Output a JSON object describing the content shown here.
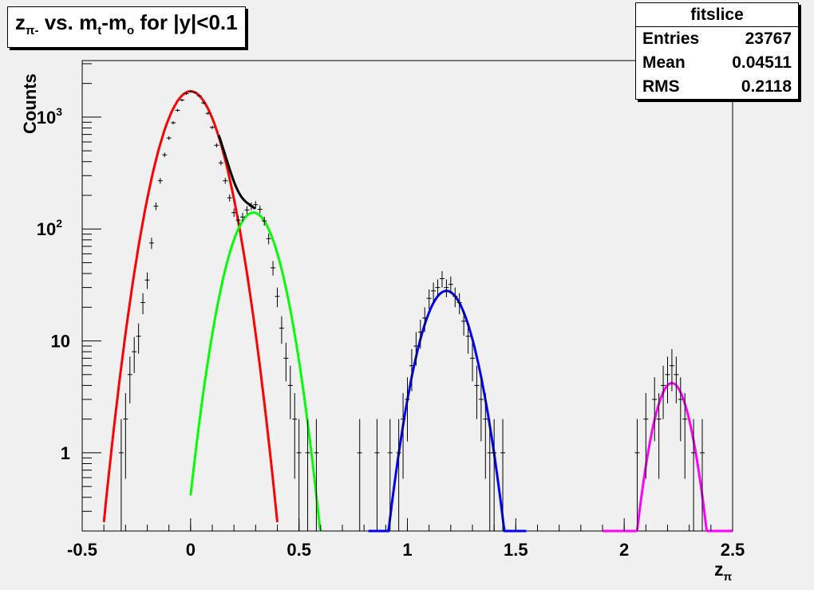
{
  "title": {
    "main": "z",
    "sub": "π-",
    "vs": " vs. m",
    "sub2": "t",
    "dash": "-m",
    "sub3": "o",
    "tail": " for |y|<0.1"
  },
  "stats": {
    "name": "fitslice",
    "rows": [
      {
        "label": "Entries",
        "value": "23767"
      },
      {
        "label": "Mean",
        "value": "0.04511"
      },
      {
        "label": "RMS",
        "value": "0.2118"
      }
    ]
  },
  "chart_data": {
    "type": "scatter",
    "xlabel": "z",
    "xlabel_sub": "π",
    "ylabel": "Counts",
    "xlim": [
      -0.5,
      2.5
    ],
    "ylim_log": [
      0.2,
      3200
    ],
    "log_y": true,
    "x_ticks": [
      {
        "v": -0.5,
        "label": "-0.5"
      },
      {
        "v": 0,
        "label": "0"
      },
      {
        "v": 0.5,
        "label": "0.5"
      },
      {
        "v": 1,
        "label": "1"
      },
      {
        "v": 1.5,
        "label": "1.5"
      },
      {
        "v": 2,
        "label": "2"
      },
      {
        "v": 2.5,
        "label": "2.5"
      }
    ],
    "y_ticks": [
      {
        "v": 1,
        "label": "1"
      },
      {
        "v": 10,
        "label": "10"
      },
      {
        "v": 100,
        "label": "10",
        "sup": "2"
      },
      {
        "v": 1000,
        "label": "10",
        "sup": "3"
      }
    ],
    "fits": [
      {
        "name": "red",
        "color": "#ff0000",
        "A": 1700,
        "mu": 0.0,
        "sigma": 0.095,
        "xmin": -0.4,
        "xmax": 0.4
      },
      {
        "name": "green",
        "color": "#00ff00",
        "A": 140,
        "mu": 0.29,
        "sigma": 0.085,
        "xmin": 0.0,
        "xmax": 0.6
      },
      {
        "name": "blue",
        "color": "#0000ff",
        "A": 28,
        "mu": 1.18,
        "sigma": 0.085,
        "xmin": 0.82,
        "xmax": 1.55
      },
      {
        "name": "magenta",
        "color": "#ff00ff",
        "A": 4.2,
        "mu": 2.22,
        "sigma": 0.065,
        "xmin": 1.9,
        "xmax": 2.5
      }
    ],
    "total": {
      "name": "sum",
      "color": "#000000",
      "xmin": 0.13,
      "xmax": 0.3
    },
    "points": [
      [
        -0.32,
        1
      ],
      [
        -0.3,
        2
      ],
      [
        -0.28,
        5
      ],
      [
        -0.26,
        8
      ],
      [
        -0.24,
        11
      ],
      [
        -0.22,
        22
      ],
      [
        -0.2,
        35
      ],
      [
        -0.18,
        75
      ],
      [
        -0.16,
        160
      ],
      [
        -0.14,
        270
      ],
      [
        -0.12,
        460
      ],
      [
        -0.1,
        650
      ],
      [
        -0.08,
        890
      ],
      [
        -0.06,
        1150
      ],
      [
        -0.04,
        1420
      ],
      [
        -0.02,
        1620
      ],
      [
        0.0,
        1700
      ],
      [
        0.02,
        1660
      ],
      [
        0.04,
        1550
      ],
      [
        0.06,
        1340
      ],
      [
        0.08,
        1080
      ],
      [
        0.1,
        810
      ],
      [
        0.12,
        560
      ],
      [
        0.14,
        390
      ],
      [
        0.16,
        270
      ],
      [
        0.18,
        190
      ],
      [
        0.2,
        140
      ],
      [
        0.22,
        120
      ],
      [
        0.24,
        128
      ],
      [
        0.26,
        148
      ],
      [
        0.28,
        160
      ],
      [
        0.3,
        165
      ],
      [
        0.32,
        150
      ],
      [
        0.34,
        118
      ],
      [
        0.36,
        82
      ],
      [
        0.38,
        45
      ],
      [
        0.4,
        25
      ],
      [
        0.42,
        13
      ],
      [
        0.44,
        7
      ],
      [
        0.46,
        4
      ],
      [
        0.48,
        2
      ],
      [
        0.5,
        1
      ],
      [
        0.54,
        1
      ],
      [
        0.58,
        1
      ],
      [
        0.78,
        1
      ],
      [
        0.86,
        1
      ],
      [
        0.92,
        1
      ],
      [
        0.96,
        1
      ],
      [
        0.98,
        2
      ],
      [
        1.0,
        3
      ],
      [
        1.02,
        6
      ],
      [
        1.04,
        9
      ],
      [
        1.06,
        12
      ],
      [
        1.08,
        16
      ],
      [
        1.1,
        24
      ],
      [
        1.12,
        28
      ],
      [
        1.14,
        30
      ],
      [
        1.16,
        36
      ],
      [
        1.18,
        30
      ],
      [
        1.2,
        32
      ],
      [
        1.22,
        25
      ],
      [
        1.24,
        22
      ],
      [
        1.26,
        15
      ],
      [
        1.28,
        11
      ],
      [
        1.3,
        7
      ],
      [
        1.32,
        4
      ],
      [
        1.34,
        3
      ],
      [
        1.36,
        2
      ],
      [
        1.38,
        1
      ],
      [
        1.4,
        1
      ],
      [
        1.44,
        1
      ],
      [
        2.06,
        1
      ],
      [
        2.1,
        2
      ],
      [
        2.14,
        3
      ],
      [
        2.16,
        2
      ],
      [
        2.18,
        4
      ],
      [
        2.2,
        5
      ],
      [
        2.22,
        6
      ],
      [
        2.24,
        5
      ],
      [
        2.26,
        3
      ],
      [
        2.28,
        2
      ],
      [
        2.32,
        1
      ],
      [
        2.36,
        1
      ]
    ]
  }
}
